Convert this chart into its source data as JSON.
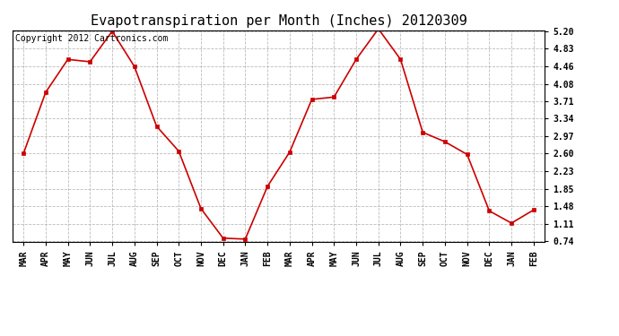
{
  "title": "Evapotranspiration per Month (Inches) 20120309",
  "copyright_text": "Copyright 2012 Cartronics.com",
  "months": [
    "MAR",
    "APR",
    "MAY",
    "JUN",
    "JUL",
    "AUG",
    "SEP",
    "OCT",
    "NOV",
    "DEC",
    "JAN",
    "FEB",
    "MAR",
    "APR",
    "MAY",
    "JUN",
    "JUL",
    "AUG",
    "SEP",
    "OCT",
    "NOV",
    "DEC",
    "JAN",
    "FEB"
  ],
  "values": [
    2.6,
    3.9,
    4.6,
    4.55,
    5.2,
    4.45,
    3.18,
    2.65,
    1.43,
    0.8,
    0.78,
    1.9,
    2.63,
    3.75,
    3.8,
    4.6,
    5.25,
    4.6,
    3.05,
    2.85,
    2.58,
    1.38,
    1.12,
    1.4
  ],
  "line_color": "#cc0000",
  "marker": "s",
  "marker_size": 3,
  "background_color": "#ffffff",
  "grid_color": "#aaaaaa",
  "yticks": [
    0.74,
    1.11,
    1.48,
    1.85,
    2.23,
    2.6,
    2.97,
    3.34,
    3.71,
    4.08,
    4.46,
    4.83,
    5.2
  ],
  "ylim": [
    0.74,
    5.2
  ],
  "title_fontsize": 11,
  "tick_fontsize": 7,
  "copyright_fontsize": 7
}
